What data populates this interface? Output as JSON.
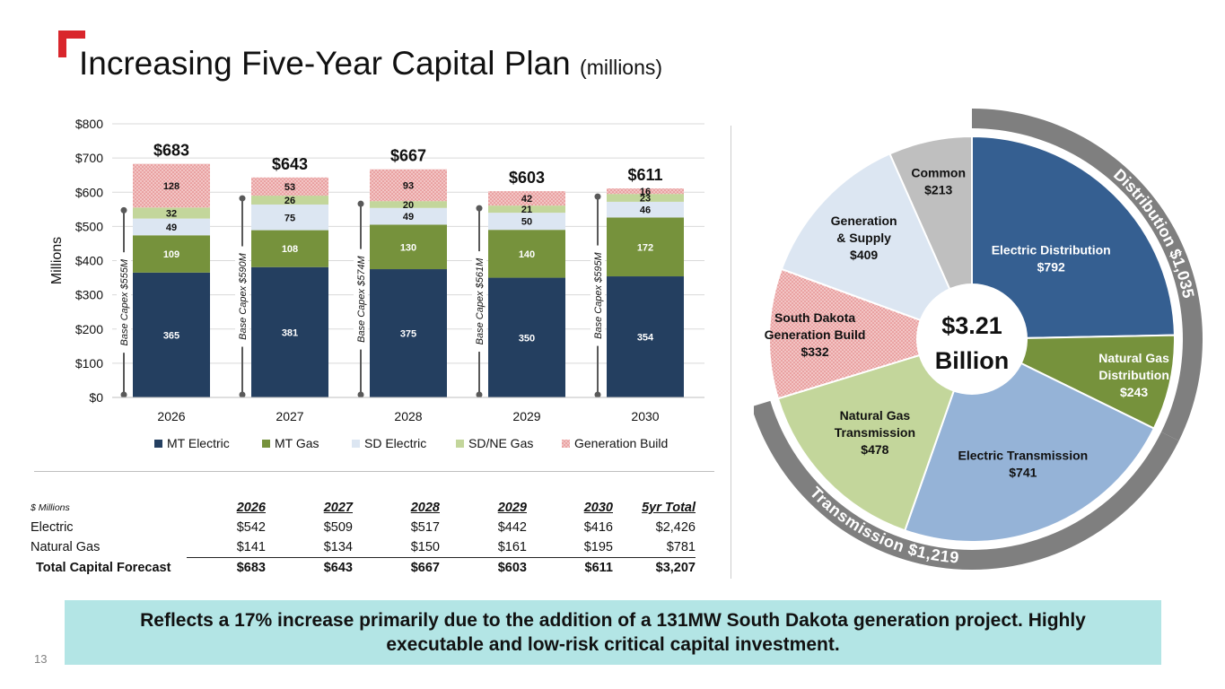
{
  "slide": {
    "title": "Increasing Five-Year Capital Plan",
    "title_suffix": "(millions)",
    "page_number": "13",
    "callout": "Reflects a 17% increase primarily due to the addition of a 131MW South Dakota generation project. Highly executable and low-risk critical capital investment."
  },
  "colors": {
    "mt_electric": "#243f60",
    "mt_gas": "#76923c",
    "sd_electric": "#dce6f2",
    "sd_ne_gas": "#c3d69b",
    "generation_build": "#f2c4c4",
    "generation_build_dot": "#e07b7b",
    "callout_bg": "#b3e5e5",
    "accent_red": "#d9262c",
    "ring_gray": "#7f7f7f"
  },
  "chart_data": [
    {
      "type": "bar",
      "stacked": true,
      "ylabel": "Millions",
      "ylim": [
        0,
        800
      ],
      "yticks": [
        "$0",
        "$100",
        "$200",
        "$300",
        "$400",
        "$500",
        "$600",
        "$700",
        "$800"
      ],
      "categories": [
        "2026",
        "2027",
        "2028",
        "2029",
        "2030"
      ],
      "series": [
        {
          "name": "MT Electric",
          "values": [
            365,
            381,
            375,
            350,
            354
          ]
        },
        {
          "name": "MT Gas",
          "values": [
            109,
            108,
            130,
            140,
            172
          ]
        },
        {
          "name": "SD Electric",
          "values": [
            49,
            75,
            49,
            50,
            46
          ]
        },
        {
          "name": "SD/NE Gas",
          "values": [
            32,
            26,
            20,
            21,
            23
          ]
        },
        {
          "name": "Generation Build",
          "values": [
            128,
            53,
            93,
            42,
            16
          ]
        }
      ],
      "totals": [
        "$683",
        "$643",
        "$667",
        "$603",
        "$611"
      ],
      "base_capex": {
        "labels": [
          "Base Capex $555M",
          "Base Capex $590M",
          "Base Capex $574M",
          "Base Capex $561M",
          "Base Capex $595M"
        ],
        "values": [
          555,
          590,
          574,
          561,
          595
        ]
      },
      "legend_position": "bottom"
    },
    {
      "type": "pie",
      "center_label": [
        "$3.21",
        "Billion"
      ],
      "slices": [
        {
          "label": [
            "Electric Distribution",
            "$792"
          ],
          "value": 792,
          "group": "distribution"
        },
        {
          "label": [
            "Natural Gas",
            "Distribution",
            "$243"
          ],
          "value": 243,
          "group": "distribution"
        },
        {
          "label": [
            "Electric Transmission",
            "$741"
          ],
          "value": 741,
          "group": "transmission"
        },
        {
          "label": [
            "Natural Gas",
            "Transmission",
            "$478"
          ],
          "value": 478,
          "group": "transmission"
        },
        {
          "label": [
            "South Dakota",
            "Generation Build",
            "$332"
          ],
          "value": 332,
          "group": "generation"
        },
        {
          "label": [
            "Generation",
            "& Supply",
            "$409"
          ],
          "value": 409,
          "group": "supply"
        },
        {
          "label": [
            "Common",
            "$213"
          ],
          "value": 213,
          "group": "common"
        }
      ],
      "arcs": [
        {
          "label": "Distribution $1,035",
          "value": 1035
        },
        {
          "label": "Transmission $1,219",
          "value": 1219
        }
      ]
    }
  ],
  "table": {
    "header_label": "$ Millions",
    "columns": [
      "2026",
      "2027",
      "2028",
      "2029",
      "2030",
      "5yr Total"
    ],
    "rows": [
      {
        "label": "Electric",
        "values": [
          "$542",
          "$509",
          "$517",
          "$442",
          "$416",
          "$2,426"
        ]
      },
      {
        "label": "Natural Gas",
        "values": [
          "$141",
          "$134",
          "$150",
          "$161",
          "$195",
          "$781"
        ]
      }
    ],
    "total": {
      "label": "Total Capital Forecast",
      "values": [
        "$683",
        "$643",
        "$667",
        "$603",
        "$611",
        "$3,207"
      ]
    }
  }
}
